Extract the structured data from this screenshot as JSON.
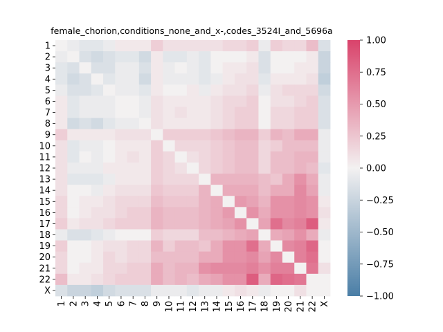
{
  "chart_data": {
    "type": "heatmap",
    "title": "female_chorion,conditions_none_and_x-,codes_3524I_and_5696a",
    "xlabel": "",
    "ylabel": "",
    "x_categories": [
      "1",
      "2",
      "3",
      "4",
      "5",
      "6",
      "7",
      "8",
      "9",
      "10",
      "11",
      "12",
      "13",
      "14",
      "15",
      "16",
      "17",
      "18",
      "19",
      "20",
      "21",
      "22",
      "X"
    ],
    "y_categories": [
      "1",
      "2",
      "3",
      "4",
      "5",
      "6",
      "7",
      "8",
      "9",
      "10",
      "11",
      "12",
      "13",
      "14",
      "15",
      "16",
      "17",
      "18",
      "19",
      "20",
      "21",
      "22",
      "X"
    ],
    "values": [
      [
        0.0,
        -0.05,
        -0.1,
        -0.1,
        -0.05,
        0.05,
        0.05,
        0.05,
        0.2,
        0.1,
        0.1,
        0.1,
        0.1,
        0.1,
        0.15,
        0.15,
        0.2,
        -0.05,
        0.2,
        0.15,
        0.15,
        0.3,
        -0.15
      ],
      [
        -0.05,
        0.0,
        -0.15,
        -0.2,
        -0.15,
        -0.1,
        -0.1,
        -0.2,
        0.05,
        -0.1,
        -0.1,
        -0.05,
        -0.1,
        0.0,
        0.0,
        0.0,
        0.05,
        -0.15,
        0.0,
        0.0,
        0.0,
        0.05,
        -0.25
      ],
      [
        -0.1,
        -0.15,
        0.0,
        -0.15,
        -0.15,
        -0.05,
        -0.05,
        -0.15,
        0.05,
        -0.05,
        0.0,
        -0.05,
        -0.1,
        0.0,
        0.05,
        0.05,
        0.1,
        -0.15,
        0.0,
        0.0,
        0.05,
        0.05,
        -0.25
      ],
      [
        -0.1,
        -0.2,
        -0.15,
        0.0,
        -0.1,
        -0.05,
        -0.05,
        -0.2,
        0.05,
        -0.05,
        -0.05,
        -0.05,
        -0.1,
        -0.05,
        0.05,
        0.1,
        0.1,
        -0.1,
        0.05,
        0.05,
        0.05,
        0.1,
        -0.3
      ],
      [
        -0.05,
        -0.15,
        -0.15,
        -0.1,
        0.0,
        -0.05,
        -0.05,
        -0.1,
        0.05,
        0.0,
        0.0,
        0.05,
        -0.05,
        0.05,
        0.1,
        0.1,
        0.15,
        -0.05,
        0.1,
        0.15,
        0.15,
        0.15,
        -0.2
      ],
      [
        0.05,
        -0.1,
        -0.05,
        -0.05,
        -0.05,
        0.0,
        0.0,
        -0.05,
        0.1,
        0.05,
        0.05,
        0.05,
        0.05,
        0.1,
        0.15,
        0.15,
        0.2,
        0.0,
        0.1,
        0.1,
        0.15,
        0.2,
        -0.15
      ],
      [
        0.05,
        -0.1,
        -0.05,
        -0.05,
        -0.05,
        0.0,
        0.0,
        -0.05,
        0.1,
        0.05,
        0.1,
        0.05,
        0.05,
        0.1,
        0.15,
        0.2,
        0.2,
        0.0,
        0.15,
        0.15,
        0.2,
        0.2,
        -0.15
      ],
      [
        0.05,
        -0.2,
        -0.15,
        -0.2,
        -0.1,
        -0.05,
        -0.05,
        0.0,
        0.1,
        0.05,
        0.05,
        0.05,
        0.05,
        0.1,
        0.15,
        0.2,
        0.2,
        0.0,
        0.15,
        0.15,
        0.2,
        0.2,
        -0.15
      ],
      [
        0.2,
        0.05,
        0.05,
        0.05,
        0.05,
        0.1,
        0.1,
        0.1,
        0.0,
        0.2,
        0.2,
        0.2,
        0.2,
        0.25,
        0.3,
        0.35,
        0.35,
        0.2,
        0.35,
        0.3,
        0.4,
        0.4,
        -0.05
      ],
      [
        0.1,
        -0.1,
        -0.05,
        -0.05,
        0.0,
        0.05,
        0.05,
        0.05,
        0.2,
        0.0,
        0.15,
        0.15,
        0.15,
        0.2,
        0.25,
        0.3,
        0.3,
        0.15,
        0.2,
        0.3,
        0.3,
        0.3,
        -0.05
      ],
      [
        0.1,
        -0.1,
        0.0,
        -0.05,
        0.0,
        0.05,
        0.1,
        0.05,
        0.2,
        0.15,
        0.0,
        0.1,
        0.15,
        0.2,
        0.25,
        0.3,
        0.3,
        0.15,
        0.3,
        0.3,
        0.35,
        0.35,
        -0.05
      ],
      [
        0.1,
        -0.05,
        -0.05,
        -0.05,
        0.05,
        0.05,
        0.05,
        0.05,
        0.2,
        0.15,
        0.1,
        0.0,
        0.15,
        0.2,
        0.25,
        0.3,
        0.3,
        0.15,
        0.3,
        0.3,
        0.35,
        0.3,
        -0.1
      ],
      [
        0.1,
        -0.1,
        -0.1,
        -0.1,
        -0.05,
        0.05,
        0.05,
        0.05,
        0.2,
        0.15,
        0.15,
        0.15,
        0.0,
        0.35,
        0.35,
        0.35,
        0.35,
        0.3,
        0.25,
        0.4,
        0.55,
        0.4,
        -0.05
      ],
      [
        0.1,
        0.0,
        0.0,
        -0.05,
        0.05,
        0.1,
        0.1,
        0.1,
        0.25,
        0.2,
        0.2,
        0.2,
        0.35,
        0.0,
        0.4,
        0.4,
        0.4,
        0.3,
        0.4,
        0.4,
        0.6,
        0.45,
        -0.05
      ],
      [
        0.15,
        0.0,
        0.05,
        0.05,
        0.1,
        0.15,
        0.15,
        0.15,
        0.3,
        0.25,
        0.25,
        0.25,
        0.35,
        0.4,
        0.0,
        0.5,
        0.45,
        0.35,
        0.55,
        0.55,
        0.6,
        0.55,
        0.05
      ],
      [
        0.15,
        0.0,
        0.05,
        0.1,
        0.1,
        0.15,
        0.2,
        0.2,
        0.35,
        0.3,
        0.3,
        0.3,
        0.35,
        0.4,
        0.5,
        0.0,
        0.55,
        0.4,
        0.55,
        0.55,
        0.6,
        0.55,
        0.1
      ],
      [
        0.2,
        0.05,
        0.1,
        0.1,
        0.15,
        0.2,
        0.2,
        0.2,
        0.35,
        0.3,
        0.3,
        0.3,
        0.35,
        0.4,
        0.45,
        0.55,
        0.0,
        0.45,
        0.75,
        0.6,
        0.65,
        0.85,
        0.05
      ],
      [
        -0.05,
        -0.15,
        -0.15,
        -0.1,
        -0.05,
        0.0,
        0.0,
        0.0,
        0.2,
        0.15,
        0.15,
        0.15,
        0.3,
        0.3,
        0.35,
        0.4,
        0.45,
        0.0,
        0.4,
        0.45,
        0.55,
        0.4,
        -0.05
      ],
      [
        0.2,
        0.0,
        0.0,
        0.05,
        0.1,
        0.1,
        0.15,
        0.15,
        0.35,
        0.2,
        0.3,
        0.3,
        0.25,
        0.4,
        0.55,
        0.55,
        0.75,
        0.4,
        0.0,
        0.6,
        0.65,
        0.8,
        0.0
      ],
      [
        0.15,
        0.0,
        0.0,
        0.05,
        0.15,
        0.1,
        0.15,
        0.15,
        0.3,
        0.3,
        0.3,
        0.3,
        0.4,
        0.4,
        0.55,
        0.55,
        0.6,
        0.45,
        0.6,
        0.0,
        0.65,
        0.75,
        0.0
      ],
      [
        0.15,
        0.0,
        0.05,
        0.05,
        0.15,
        0.15,
        0.2,
        0.2,
        0.4,
        0.3,
        0.35,
        0.35,
        0.55,
        0.6,
        0.6,
        0.6,
        0.65,
        0.55,
        0.65,
        0.65,
        0.0,
        0.7,
        0.1
      ],
      [
        0.3,
        0.05,
        0.05,
        0.1,
        0.15,
        0.2,
        0.2,
        0.2,
        0.4,
        0.3,
        0.35,
        0.3,
        0.4,
        0.45,
        0.55,
        0.55,
        0.85,
        0.4,
        0.8,
        0.75,
        0.7,
        0.0,
        0.0
      ],
      [
        -0.15,
        -0.25,
        -0.25,
        -0.3,
        -0.2,
        -0.15,
        -0.15,
        -0.15,
        -0.05,
        -0.05,
        -0.05,
        -0.1,
        -0.05,
        -0.05,
        0.05,
        0.1,
        0.05,
        -0.05,
        0.0,
        0.0,
        0.1,
        0.0,
        0.0
      ]
    ],
    "vmin": -1.0,
    "vmax": 1.0,
    "colorbar_ticks": [
      "1.00",
      "0.75",
      "0.50",
      "0.25",
      "0.00",
      "−0.25",
      "−0.50",
      "−0.75",
      "−1.00"
    ],
    "colormap": {
      "low": "#4a7ea6",
      "mid": "#f3f1f1",
      "high": "#d9436b"
    },
    "legend": "colorbar-right"
  }
}
